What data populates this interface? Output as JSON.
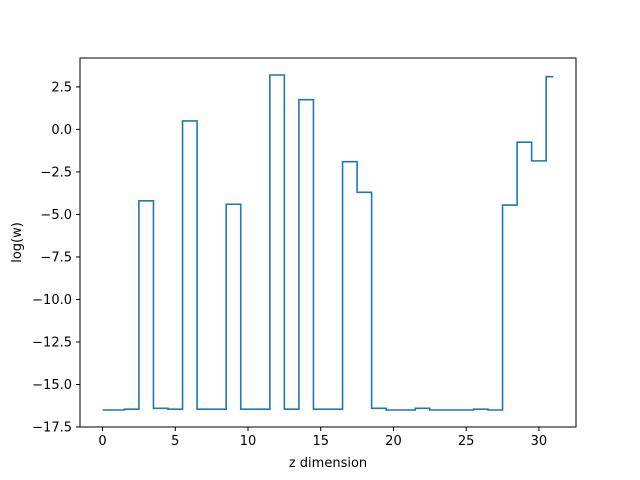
{
  "chart_data": {
    "type": "line",
    "drawstyle": "steps-mid",
    "title": "",
    "xlabel": "z dimension",
    "ylabel": "log(w)",
    "xlim": [
      -1.55,
      32.55
    ],
    "ylim": [
      -17.5,
      4.2
    ],
    "xticks": [
      0,
      5,
      10,
      15,
      20,
      25,
      30
    ],
    "xtick_labels": [
      "0",
      "5",
      "10",
      "15",
      "20",
      "25",
      "30"
    ],
    "yticks": [
      2.5,
      0.0,
      -2.5,
      -5.0,
      -7.5,
      -10.0,
      -12.5,
      -15.0,
      -17.5
    ],
    "ytick_labels": [
      "2.5",
      "0.0",
      "−2.5",
      "−5.0",
      "−7.5",
      "−10.0",
      "−12.5",
      "−15.0",
      "−17.5"
    ],
    "grid": false,
    "line_color": "#1f77b4",
    "series": [
      {
        "x": [
          0,
          1,
          2,
          3,
          4,
          5,
          6,
          7,
          8,
          9,
          10,
          11,
          12,
          13,
          14,
          15,
          16,
          17,
          18,
          19,
          20,
          21,
          22,
          23,
          24,
          25,
          26,
          27,
          28,
          29,
          30,
          31
        ],
        "values": [
          -16.5,
          -16.5,
          -16.45,
          -4.2,
          -16.4,
          -16.45,
          0.5,
          -16.45,
          -16.45,
          -4.4,
          -16.45,
          -16.45,
          3.2,
          -16.45,
          1.75,
          -16.45,
          -16.45,
          -1.9,
          -3.7,
          -16.4,
          -16.5,
          -16.5,
          -16.4,
          -16.5,
          -16.5,
          -16.5,
          -16.45,
          -16.5,
          -4.45,
          -0.75,
          -1.85,
          3.1
        ]
      }
    ]
  }
}
